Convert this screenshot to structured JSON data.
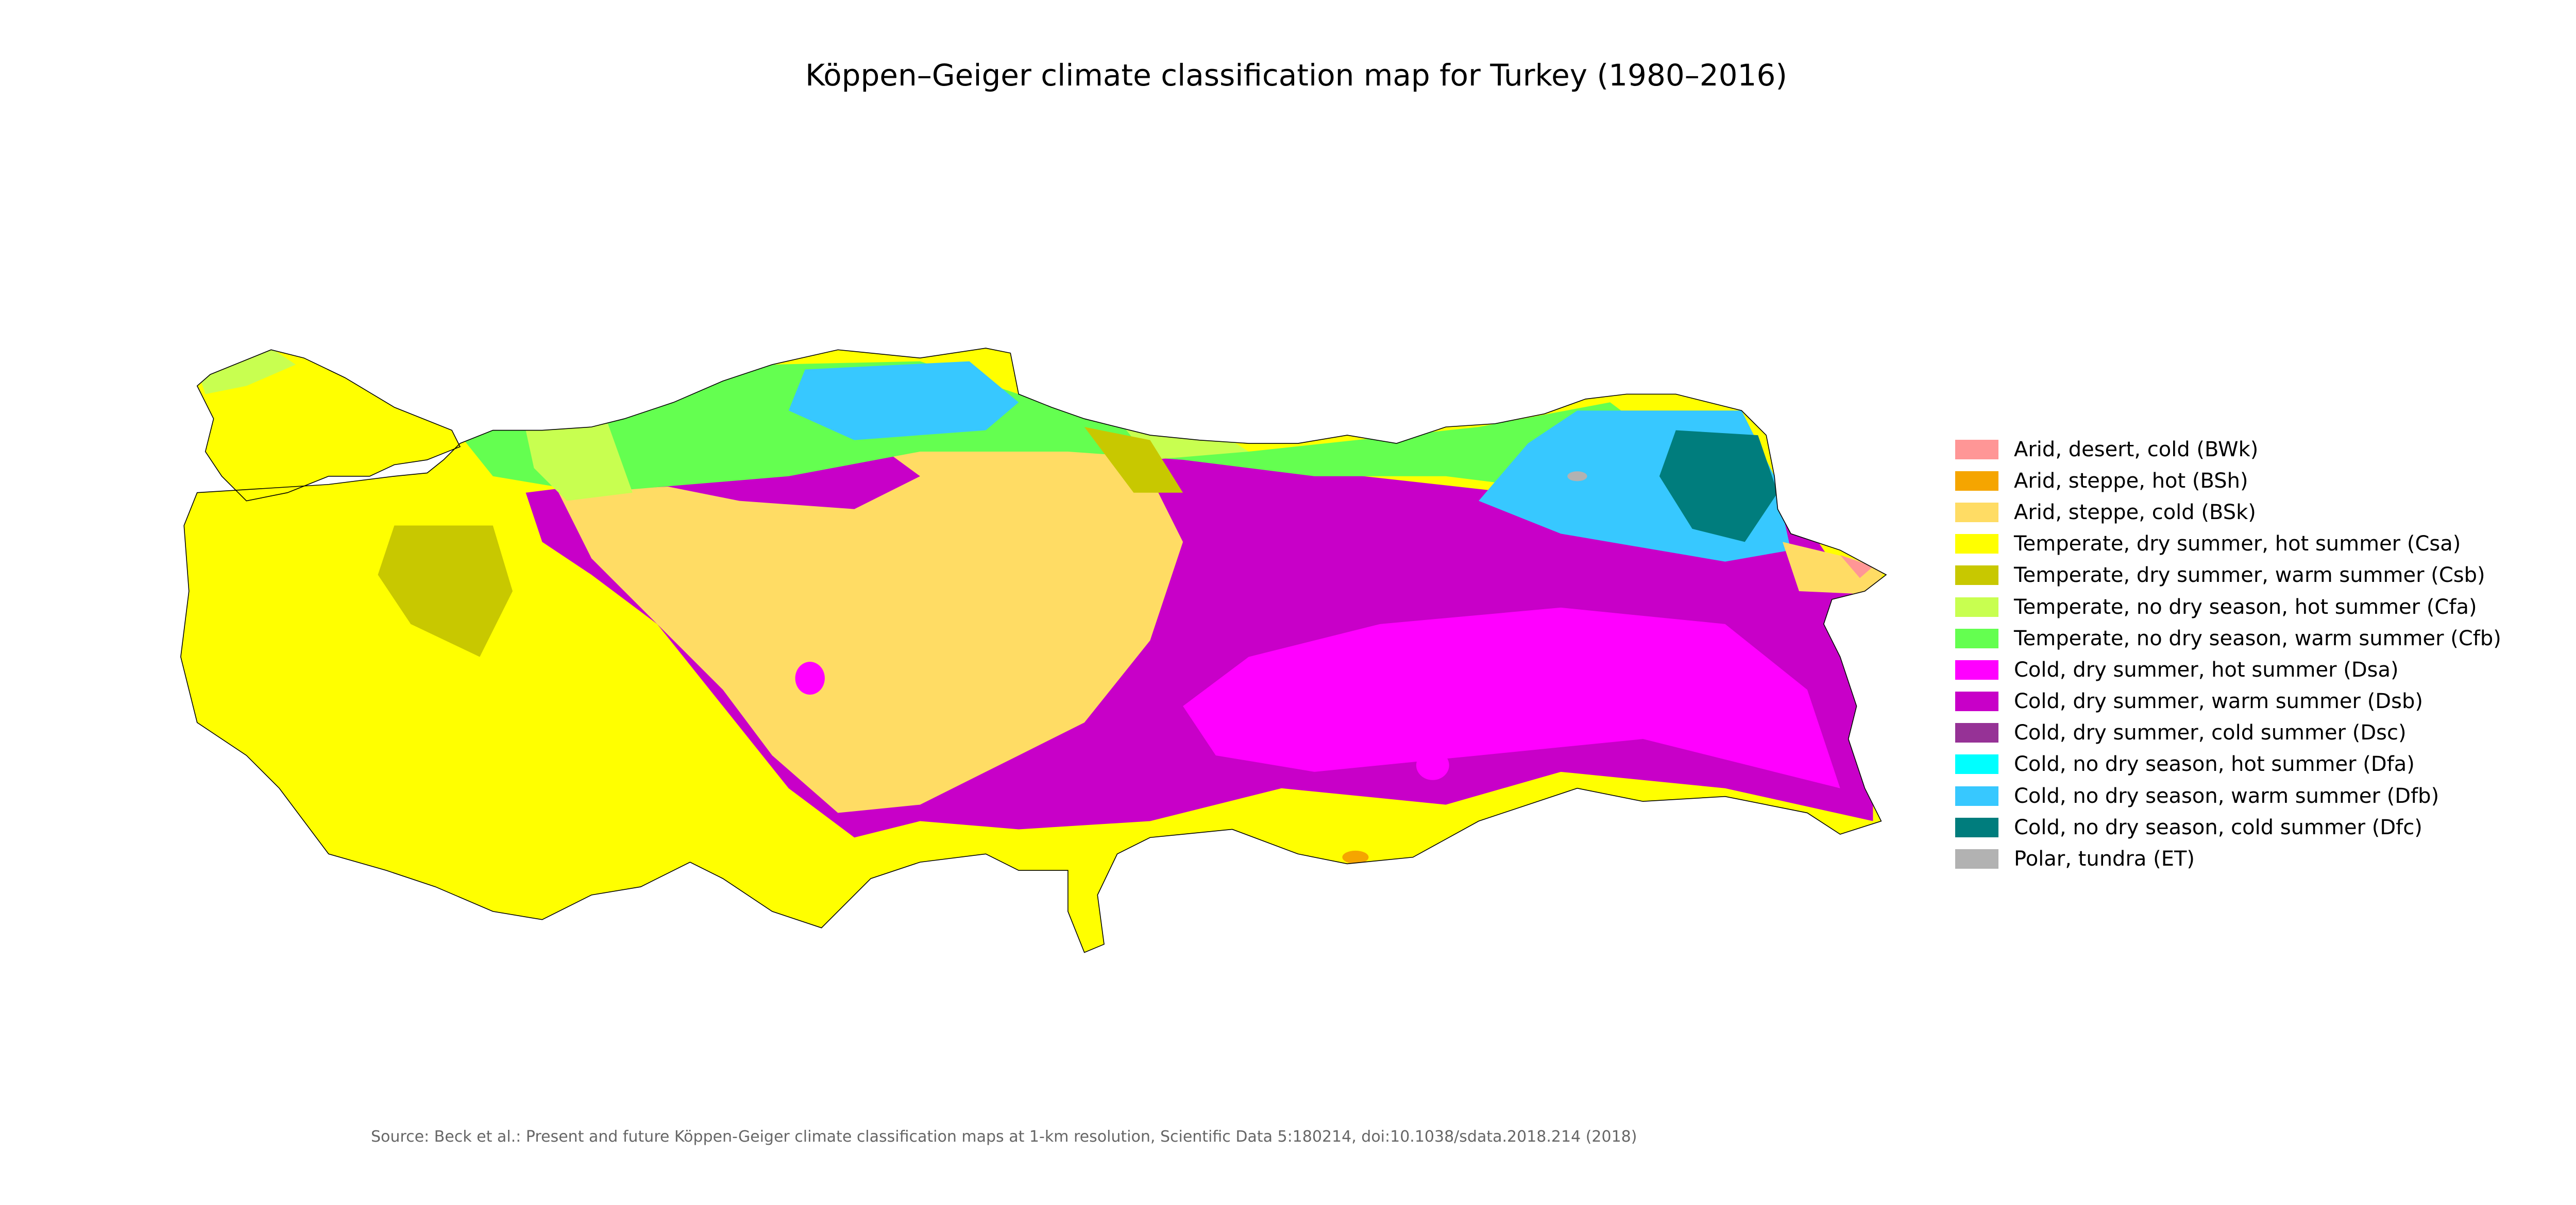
{
  "title": "Köppen–Geiger climate classification map for Turkey (1980–2016)",
  "legend": [
    {
      "label": "Arid, desert, cold (BWk)",
      "code": "BWk",
      "color": "#ff9696"
    },
    {
      "label": "Arid, steppe, hot (BSh)",
      "code": "BSh",
      "color": "#f5a500"
    },
    {
      "label": "Arid, steppe, cold (BSk)",
      "code": "BSk",
      "color": "#ffdc64"
    },
    {
      "label": "Temperate, dry summer, hot summer (Csa)",
      "code": "Csa",
      "color": "#ffff00"
    },
    {
      "label": "Temperate, dry summer, warm summer (Csb)",
      "code": "Csb",
      "color": "#c8c800"
    },
    {
      "label": "Temperate, no dry season, hot summer (Cfa)",
      "code": "Cfa",
      "color": "#c8ff50"
    },
    {
      "label": "Temperate, no dry season, warm summer (Cfb)",
      "code": "Cfb",
      "color": "#64ff50"
    },
    {
      "label": "Cold, dry summer, hot summer (Dsa)",
      "code": "Dsa",
      "color": "#ff00ff"
    },
    {
      "label": "Cold, dry summer, warm summer (Dsb)",
      "code": "Dsb",
      "color": "#c800c8"
    },
    {
      "label": "Cold, dry summer, cold summer (Dsc)",
      "code": "Dsc",
      "color": "#963296"
    },
    {
      "label": "Cold, no dry season, hot summer (Dfa)",
      "code": "Dfa",
      "color": "#00ffff"
    },
    {
      "label": "Cold, no dry season, warm summer (Dfb)",
      "code": "Dfb",
      "color": "#37c8ff"
    },
    {
      "label": "Cold, no dry season, cold summer (Dfc)",
      "code": "Dfc",
      "color": "#007d7d"
    },
    {
      "label": "Polar, tundra (ET)",
      "code": "ET",
      "color": "#b2b2b2"
    }
  ],
  "source": "Source: Beck et al.: Present and future Köppen-Geiger climate classification maps at 1-km resolution, Scientific Data 5:180214, doi:10.1038/sdata.2018.214 (2018)"
}
